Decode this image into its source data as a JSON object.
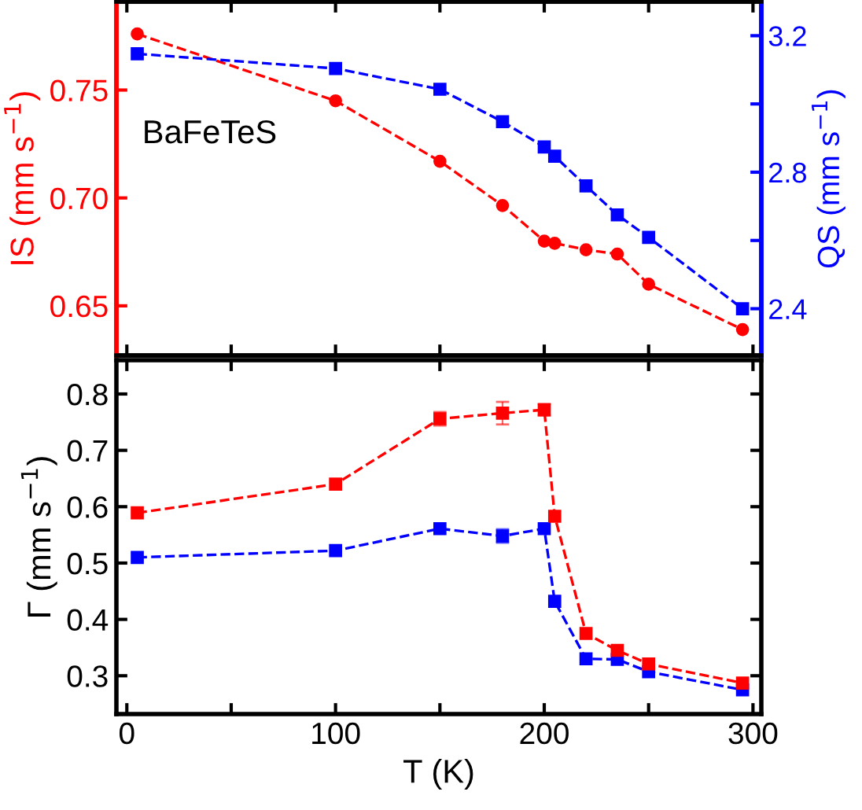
{
  "chart_data": [
    {
      "type": "line",
      "ylabel": "IS (mm s$^{−1}$)",
      "y2label": "QS (mm s$^{−1}$)",
      "annotations": [
        "BaFeTeS"
      ],
      "tick_labels": "y",
      "line_style": "dashed",
      "grid": false,
      "legend": false,
      "xlim": [
        -5,
        304
      ],
      "xticks": [
        0,
        {
          "value": 50,
          "label": null
        },
        100,
        {
          "value": 150,
          "label": null
        },
        200,
        {
          "value": 250,
          "label": null
        },
        300
      ],
      "ylim": [
        0.627,
        0.791
      ],
      "yticks": [
        {
          "value": 0.65,
          "label": "0.65"
        },
        {
          "value": 0.7,
          "label": "0.70"
        },
        {
          "value": 0.75,
          "label": "0.75"
        }
      ],
      "y2lim": [
        2.263,
        3.3
      ],
      "y2ticks": [
        2.4,
        {
          "value": 2.6,
          "label": null
        },
        2.8,
        {
          "value": 3.0,
          "label": null
        },
        3.2
      ],
      "series": [
        {
          "color": "#ff0000",
          "marker": "circle",
          "axis": "y",
          "x": [
            5,
            100,
            150,
            180,
            200,
            205,
            220,
            235,
            250,
            295
          ],
          "values": [
            0.776,
            0.745,
            0.717,
            0.6965,
            0.68,
            0.679,
            0.676,
            0.674,
            0.66,
            0.639
          ]
        },
        {
          "color": "#0000ff",
          "marker": "square",
          "axis": "y2",
          "x": [
            5,
            100,
            150,
            180,
            200,
            205,
            220,
            235,
            250,
            295
          ],
          "values": [
            3.147,
            3.104,
            3.043,
            2.948,
            2.874,
            2.847,
            2.76,
            2.675,
            2.609,
            2.4
          ]
        }
      ]
    },
    {
      "type": "line",
      "xlabel": "T (K)",
      "ylabel": "Γ (mm s$^{−1}$)",
      "line_style": "dashed",
      "grid": false,
      "legend": false,
      "xlim": [
        -5,
        304
      ],
      "xticks": [
        0,
        {
          "value": 50,
          "label": null
        },
        100,
        {
          "value": 150,
          "label": null
        },
        200,
        {
          "value": 250,
          "label": null
        },
        300
      ],
      "ylim": [
        0.232,
        0.86
      ],
      "yticks": [
        0.3,
        0.4,
        0.5,
        0.6,
        0.7,
        0.8
      ],
      "series": [
        {
          "color": "#ff0000",
          "marker": "square",
          "x": [
            5,
            100,
            150,
            180,
            200,
            205,
            220,
            235,
            250,
            295
          ],
          "values": [
            0.589,
            0.64,
            0.756,
            0.766,
            0.772,
            0.583,
            0.375,
            0.345,
            0.321,
            0.287
          ],
          "errors": [
            null,
            null,
            0.012,
            0.02,
            0.01,
            null,
            null,
            null,
            null,
            null
          ]
        },
        {
          "color": "#0000ff",
          "marker": "square",
          "x": [
            5,
            100,
            150,
            180,
            200,
            205,
            220,
            235,
            250,
            295
          ],
          "values": [
            0.51,
            0.522,
            0.561,
            0.548,
            0.561,
            0.432,
            0.33,
            0.329,
            0.307,
            0.275
          ],
          "errors": [
            null,
            null,
            null,
            0.012,
            null,
            null,
            null,
            null,
            null,
            null
          ]
        }
      ]
    }
  ]
}
